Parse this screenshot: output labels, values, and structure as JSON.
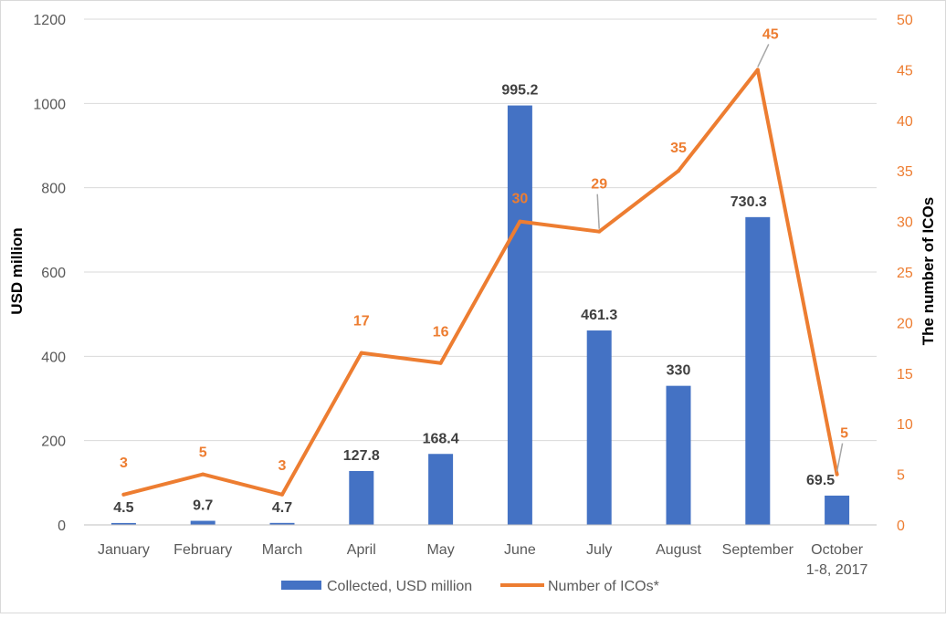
{
  "chart_data": {
    "type": "bar",
    "categories": [
      [
        "January"
      ],
      [
        "February"
      ],
      [
        "March"
      ],
      [
        "April"
      ],
      [
        "May"
      ],
      [
        "June"
      ],
      [
        "July"
      ],
      [
        "August"
      ],
      [
        "September"
      ],
      [
        "October",
        "1-8, 2017"
      ]
    ],
    "series": [
      {
        "name": "Collected, USD million",
        "type": "bar",
        "axis": "left",
        "color": "#4472C4",
        "values": [
          4.5,
          9.7,
          4.7,
          127.8,
          168.4,
          995.2,
          461.3,
          330,
          730.3,
          69.5
        ],
        "labels": [
          "4.5",
          "9.7",
          "4.7",
          "127.8",
          "168.4",
          "995.2",
          "461.3",
          "330",
          "730.3",
          "69.5"
        ]
      },
      {
        "name": "Number of ICOs*",
        "type": "line",
        "axis": "right",
        "color": "#ED7D31",
        "values": [
          3,
          5,
          3,
          17,
          16,
          30,
          29,
          35,
          45,
          5
        ],
        "labels": [
          "3",
          "5",
          "3",
          "17",
          "16",
          "30",
          "29",
          "35",
          "45",
          "5"
        ]
      }
    ],
    "ylabel": "USD million",
    "ylabel_right": "The number of ICOs",
    "ylim": [
      0,
      1200
    ],
    "ylim_right": [
      0,
      50
    ],
    "yticks": [
      0,
      200,
      400,
      600,
      800,
      1000,
      1200
    ],
    "yticks_right": [
      0,
      5,
      10,
      15,
      20,
      25,
      30,
      35,
      40,
      45,
      50
    ],
    "grid": true,
    "legend_position": "bottom"
  }
}
